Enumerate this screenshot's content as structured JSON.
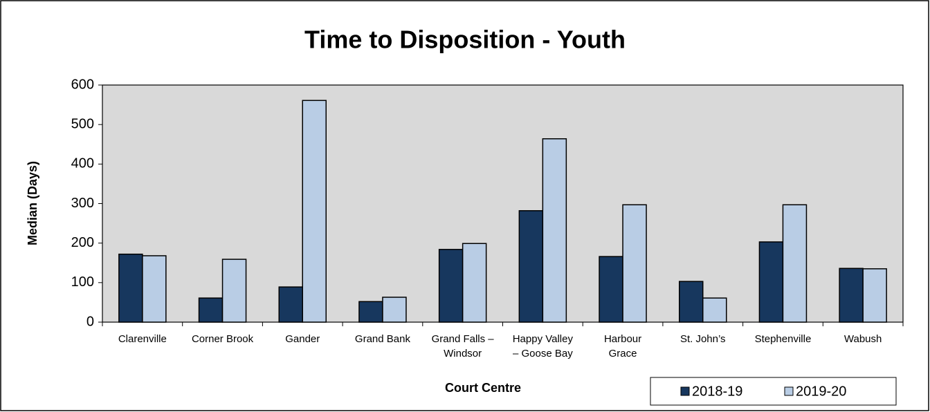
{
  "chart_data": {
    "type": "bar",
    "title": "Time to Disposition - Youth",
    "x_label": "Court Centre",
    "y_label": "Median (Days)",
    "categories": [
      "Clarenville",
      "Corner Brook",
      "Gander",
      "Grand Bank",
      "Grand Falls –\nWindsor",
      "Happy Valley\n– Goose Bay",
      "Harbour\nGrace",
      "St. John’s",
      "Stephenville",
      "Wabush"
    ],
    "series": [
      {
        "name": "2018-19",
        "color": "#17375e",
        "values": [
          172,
          61,
          89,
          52,
          184,
          282,
          166,
          103,
          203,
          136
        ]
      },
      {
        "name": "2019-20",
        "color": "#b9cde5",
        "values": [
          168,
          159,
          561,
          63,
          199,
          464,
          297,
          61,
          297,
          135
        ]
      }
    ],
    "ylim": [
      0,
      600
    ],
    "yticks": [
      0,
      100,
      200,
      300,
      400,
      500,
      600
    ],
    "legend": "bottom-right"
  }
}
